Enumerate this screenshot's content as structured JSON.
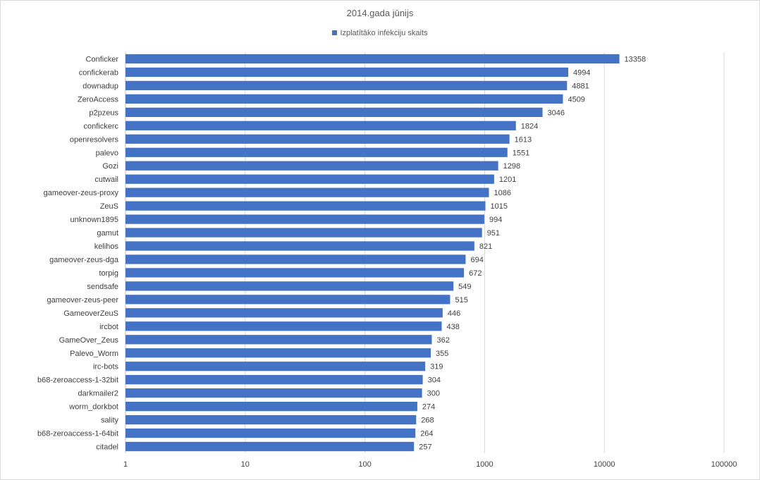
{
  "chart_data": {
    "type": "bar",
    "orientation": "horizontal",
    "title": "2014.gada jūnijs",
    "xlabel": "",
    "ylabel": "",
    "x_scale": "log",
    "xlim": [
      1,
      100000
    ],
    "x_ticks": [
      "1",
      "10",
      "100",
      "1000",
      "10000",
      "100000"
    ],
    "grid": true,
    "legend_position": "top",
    "series": [
      {
        "name": "Izplatītāko infekciju skaits",
        "color": "#4472c4",
        "values": [
          13358,
          4994,
          4881,
          4509,
          3046,
          1824,
          1613,
          1551,
          1298,
          1201,
          1086,
          1015,
          994,
          951,
          821,
          694,
          672,
          549,
          515,
          446,
          438,
          362,
          355,
          319,
          304,
          300,
          274,
          268,
          264,
          257
        ]
      }
    ],
    "categories": [
      "Conficker",
      "confickerab",
      "downadup",
      "ZeroAccess",
      "p2pzeus",
      "confickerc",
      "openresolvers",
      "palevo",
      "Gozi",
      "cutwail",
      "gameover-zeus-proxy",
      "ZeuS",
      "unknown1895",
      "gamut",
      "kelihos",
      "gameover-zeus-dga",
      "torpig",
      "sendsafe",
      "gameover-zeus-peer",
      "GameoverZeuS",
      "ircbot",
      "GameOver_Zeus",
      "Palevo_Worm",
      "irc-bots",
      "b68-zeroaccess-1-32bit",
      "darkmailer2",
      "worm_dorkbot",
      "sality",
      "b68-zeroaccess-1-64bit",
      "citadel"
    ]
  }
}
